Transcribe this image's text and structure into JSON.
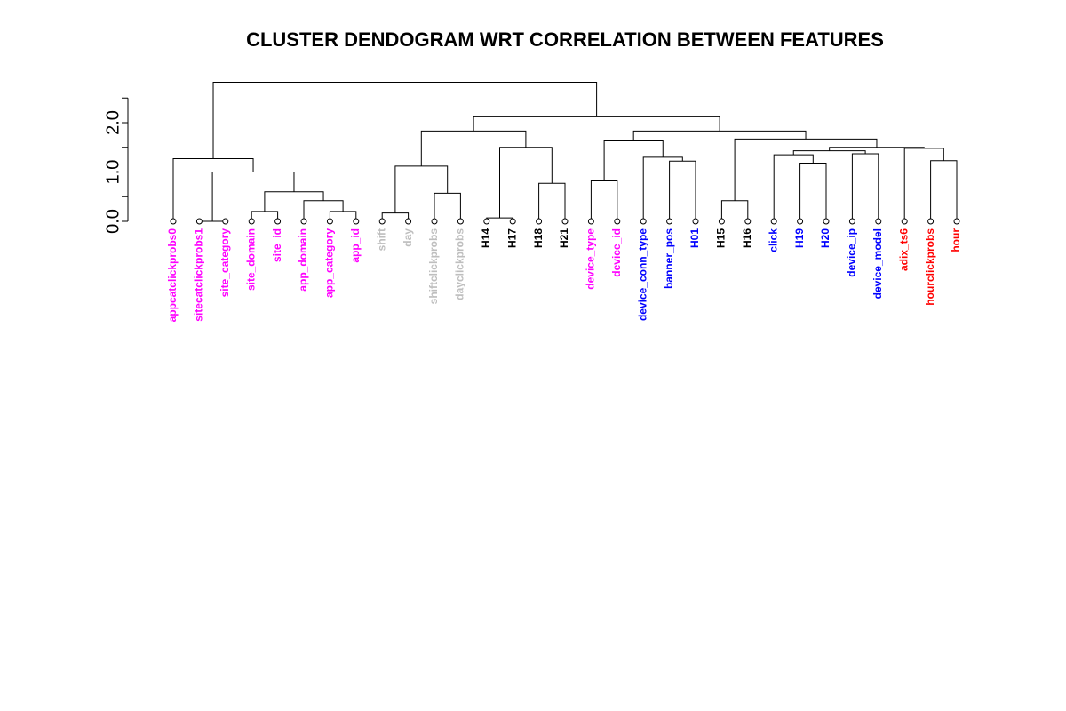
{
  "chart_data": {
    "type": "dendrogram",
    "title": "CLUSTER DENDOGRAM WRT CORRELATION BETWEEN FEATURES",
    "ylabel": "",
    "ylim": [
      0,
      2.85
    ],
    "yticks": [
      0.0,
      0.5,
      1.0,
      1.5,
      2.0,
      2.5
    ],
    "ytick_labels": [
      "0.0",
      "",
      "1.0",
      "",
      "2.0",
      ""
    ],
    "colors": {
      "magenta": "#ff00ff",
      "gray": "#bebebe",
      "black": "#000000",
      "blue": "#0000ff",
      "red": "#ff0000"
    },
    "leaves": [
      {
        "label": "appcatclickprobs0",
        "color": "magenta"
      },
      {
        "label": "sitecatclickprobs1",
        "color": "magenta"
      },
      {
        "label": "site_category",
        "color": "magenta"
      },
      {
        "label": "site_domain",
        "color": "magenta"
      },
      {
        "label": "site_id",
        "color": "magenta"
      },
      {
        "label": "app_domain",
        "color": "magenta"
      },
      {
        "label": "app_category",
        "color": "magenta"
      },
      {
        "label": "app_id",
        "color": "magenta"
      },
      {
        "label": "shift",
        "color": "gray"
      },
      {
        "label": "day",
        "color": "gray"
      },
      {
        "label": "shiftclickprobs",
        "color": "gray"
      },
      {
        "label": "dayclickprobs",
        "color": "gray"
      },
      {
        "label": "H14",
        "color": "black"
      },
      {
        "label": "H17",
        "color": "black"
      },
      {
        "label": "H18",
        "color": "black"
      },
      {
        "label": "H21",
        "color": "black"
      },
      {
        "label": "device_type",
        "color": "magenta"
      },
      {
        "label": "device_id",
        "color": "magenta"
      },
      {
        "label": "device_conn_type",
        "color": "blue"
      },
      {
        "label": "banner_pos",
        "color": "blue"
      },
      {
        "label": "H01",
        "color": "blue"
      },
      {
        "label": "H15",
        "color": "black"
      },
      {
        "label": "H16",
        "color": "black"
      },
      {
        "label": "click",
        "color": "blue"
      },
      {
        "label": "H19",
        "color": "blue"
      },
      {
        "label": "H20",
        "color": "blue"
      },
      {
        "label": "device_ip",
        "color": "blue"
      },
      {
        "label": "device_model",
        "color": "blue"
      },
      {
        "label": "adix_ts6",
        "color": "red"
      },
      {
        "label": "hourclickprobs",
        "color": "red"
      },
      {
        "label": "hour",
        "color": "red"
      }
    ],
    "merges": [
      {
        "a": 1,
        "b": 2,
        "height": 0.0
      },
      {
        "a": 3,
        "b": 4,
        "height": 0.2
      },
      {
        "a": 6,
        "b": 7,
        "height": 0.2
      },
      {
        "a": 5,
        "b": "m2",
        "height": 0.42
      },
      {
        "a": "m1",
        "b": "m3",
        "height": 0.6
      },
      {
        "a": "m0",
        "b": "m4",
        "height": 1.0
      },
      {
        "a": 0,
        "b": "m5",
        "height": 1.27
      },
      {
        "a": 8,
        "b": 9,
        "height": 0.17
      },
      {
        "a": 10,
        "b": 11,
        "height": 0.57
      },
      {
        "a": "m7",
        "b": "m8",
        "height": 1.12
      },
      {
        "a": 12,
        "b": 13,
        "height": 0.07
      },
      {
        "a": 14,
        "b": 15,
        "height": 0.77
      },
      {
        "a": "m10",
        "b": "m11",
        "height": 1.5
      },
      {
        "a": "m9",
        "b": "m12",
        "height": 1.83
      },
      {
        "a": 16,
        "b": 17,
        "height": 0.82
      },
      {
        "a": 19,
        "b": 20,
        "height": 1.22
      },
      {
        "a": 18,
        "b": "m15",
        "height": 1.3
      },
      {
        "a": "m14",
        "b": "m16",
        "height": 1.63
      },
      {
        "a": 21,
        "b": 22,
        "height": 0.42
      },
      {
        "a": 24,
        "b": 25,
        "height": 1.18
      },
      {
        "a": 23,
        "b": "m19",
        "height": 1.35
      },
      {
        "a": 26,
        "b": 27,
        "height": 1.37
      },
      {
        "a": "m20",
        "b": "m21",
        "height": 1.43
      },
      {
        "a": 29,
        "b": 30,
        "height": 1.23
      },
      {
        "a": 28,
        "b": "m23",
        "height": 1.48
      },
      {
        "a": "m22",
        "b": "m24",
        "height": 1.5
      },
      {
        "a": "m18",
        "b": "m25",
        "height": 1.67
      },
      {
        "a": "m17",
        "b": "m26",
        "height": 1.83
      },
      {
        "a": "m13",
        "b": "m27",
        "height": 2.12
      },
      {
        "a": "m6",
        "b": "m28",
        "height": 2.82
      }
    ]
  }
}
